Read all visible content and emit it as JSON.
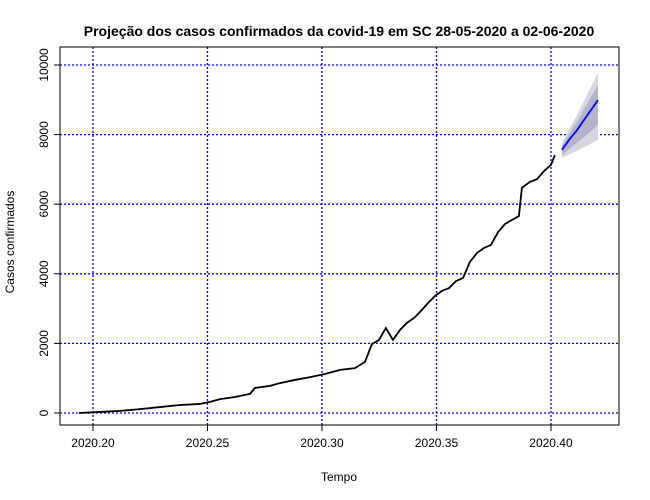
{
  "chart_data": {
    "type": "forecast",
    "title": "Projeção dos casos confirmados da covid-19 em SC 28-05-2020 a 02-06-2020",
    "x_label": "Tempo",
    "y_label": "Casos confirmados",
    "xlim": [
      2020.1856,
      2020.4297
    ],
    "ylim": [
      -345,
      10517
    ],
    "xticks": [
      {
        "value": 2020.2,
        "label": "2020.20"
      },
      {
        "value": 2020.25,
        "label": "2020.25"
      },
      {
        "value": 2020.3,
        "label": "2020.30"
      },
      {
        "value": 2020.35,
        "label": "2020.35"
      },
      {
        "value": 2020.4,
        "label": "2020.40"
      }
    ],
    "yticks": [
      0,
      2000,
      4000,
      6000,
      8000,
      10000
    ],
    "grid": true,
    "grid_color": "#0000ff",
    "series": [
      {
        "color": "#000000",
        "x": [
          2020.1939,
          2020.2031,
          2020.2118,
          2020.2205,
          2020.2293,
          2020.238,
          2020.2467,
          2020.2511,
          2020.2555,
          2020.262,
          2020.2686,
          2020.2707,
          2020.2773,
          2020.2817,
          2020.2882,
          2020.2948,
          2020.3013,
          2020.3079,
          2020.3144,
          2020.3188,
          2020.3218,
          2020.3249,
          2020.3279,
          2020.331,
          2020.3341,
          2020.3371,
          2020.3402,
          2020.3432,
          2020.3463,
          2020.3493,
          2020.3524,
          2020.3555,
          2020.3585,
          2020.3616,
          2020.3646,
          2020.3677,
          2020.3707,
          2020.3738,
          2020.3769,
          2020.3799,
          2020.383,
          2020.386,
          2020.3873,
          2020.3908,
          2020.3939,
          2020.3969,
          2020.4,
          2020.4017
        ],
        "values": [
          0,
          30,
          60,
          110,
          170,
          230,
          260,
          320,
          400,
          460,
          550,
          720,
          780,
          860,
          950,
          1030,
          1120,
          1240,
          1290,
          1470,
          1980,
          2100,
          2440,
          2100,
          2390,
          2590,
          2730,
          2930,
          3160,
          3360,
          3510,
          3590,
          3790,
          3880,
          4340,
          4600,
          4740,
          4830,
          5200,
          5430,
          5550,
          5660,
          6470,
          6640,
          6720,
          6950,
          7130,
          7410
        ]
      },
      {
        "color": "#0000ff",
        "x": [
          2020.4048,
          2020.4079,
          2020.4114,
          2020.4144,
          2020.4175,
          2020.4205
        ],
        "values": [
          7560,
          7850,
          8130,
          8420,
          8710,
          8990
        ]
      }
    ],
    "bands": [
      {
        "color": "#d6d6e0",
        "x": [
          2020.4048,
          2020.4079,
          2020.4114,
          2020.4144,
          2020.4175,
          2020.4205
        ],
        "lower": [
          7330,
          7432,
          7534,
          7636,
          7738,
          7840
        ],
        "upper": [
          7760,
          8162,
          8564,
          8966,
          9368,
          9770
        ]
      },
      {
        "color": "#b3b3c9",
        "x": [
          2020.4048,
          2020.4079,
          2020.4114,
          2020.4144,
          2020.4175,
          2020.4205
        ],
        "lower": [
          7410,
          7584,
          7758,
          7932,
          8106,
          8280
        ],
        "upper": [
          7670,
          8022,
          8374,
          8726,
          9078,
          9430
        ]
      }
    ]
  }
}
